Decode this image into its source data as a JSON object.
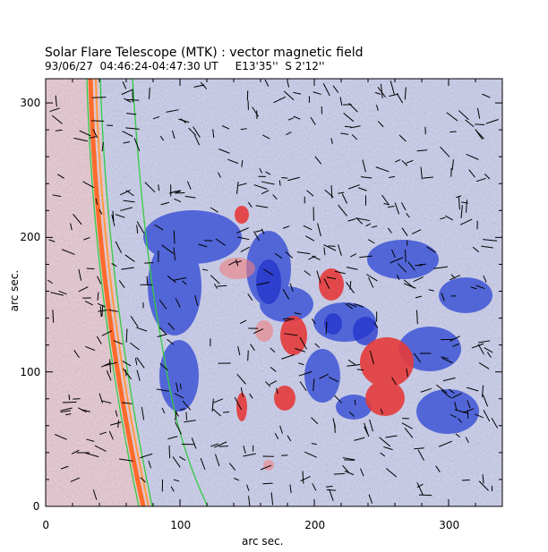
{
  "title": "Solar Flare Telescope (MTK) : vector magnetic field",
  "subtitle": "93/06/27  04:46:24-04:47:30 UT     E13'35''  S 2'12''",
  "axes": {
    "xlabel": "arc sec.",
    "ylabel": "arc sec.",
    "xlim": [
      0,
      340
    ],
    "ylim": [
      0,
      318
    ],
    "xticks": [
      0,
      100,
      200,
      300
    ],
    "yticks": [
      0,
      100,
      200,
      300
    ]
  },
  "colors": {
    "positive": "#e83a3a",
    "negative": "#3b4fd8",
    "limb_contour": "#2ecc40",
    "background": "#c8cbea"
  }
}
